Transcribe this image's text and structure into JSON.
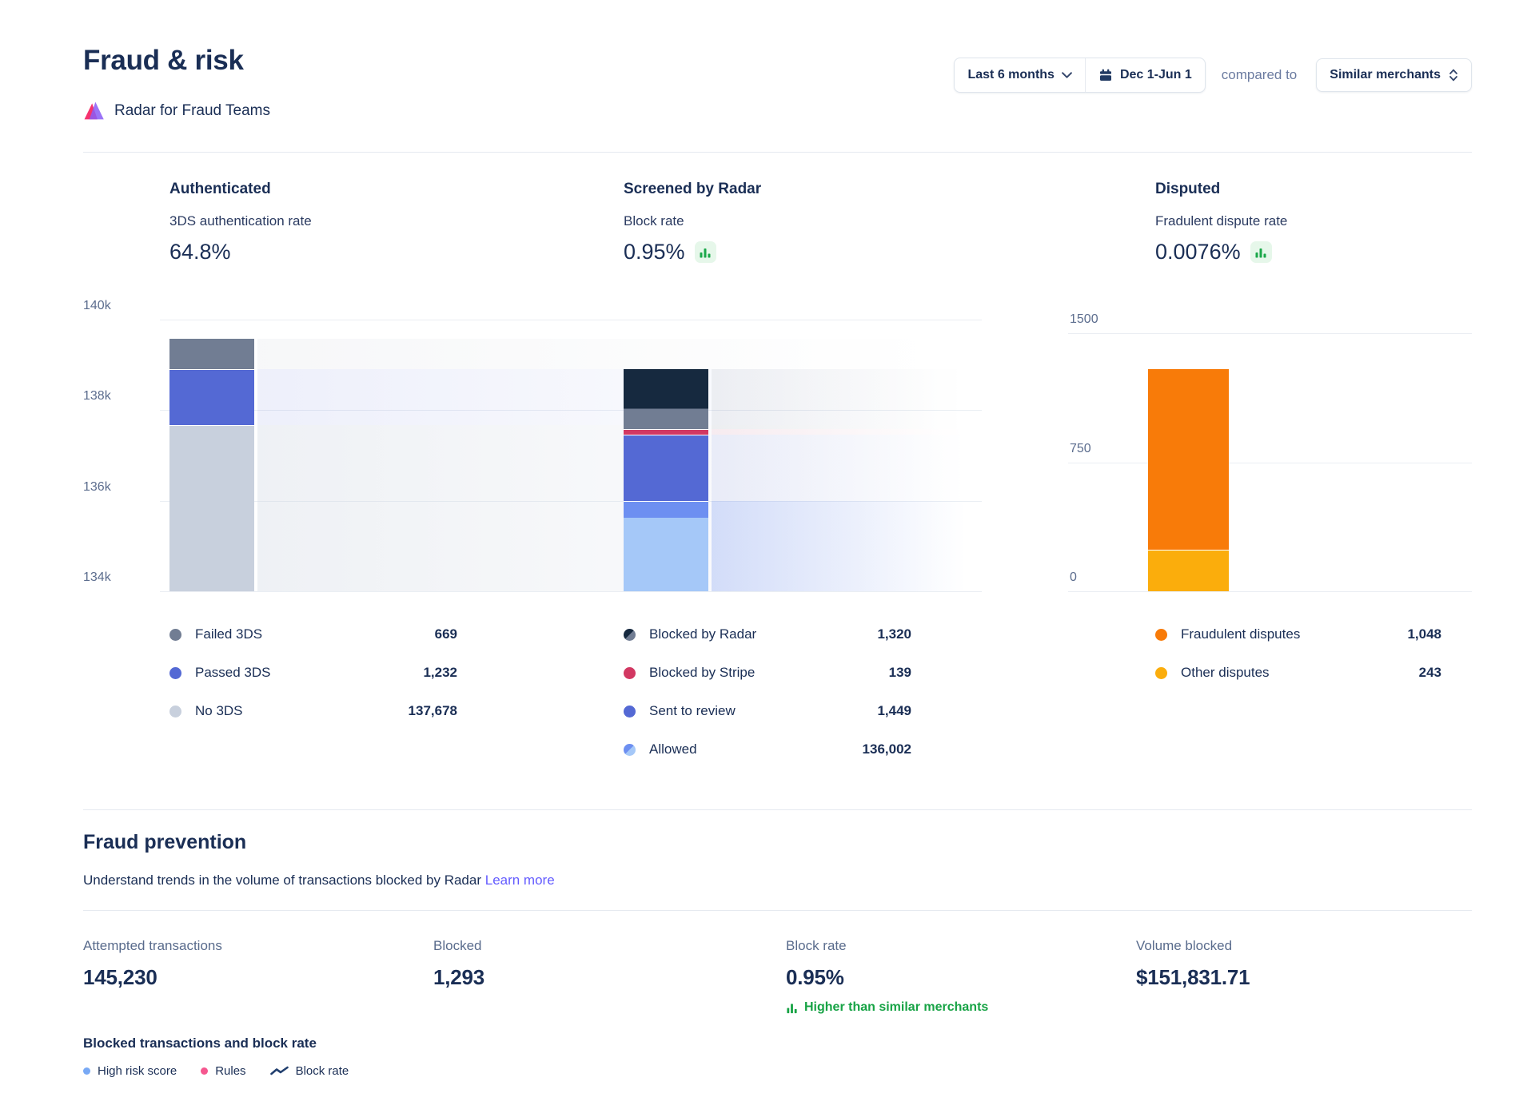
{
  "header": {
    "title": "Fraud & risk",
    "product": "Radar for Fraud Teams",
    "range_button": "Last 6 months",
    "date_button": "Dec 1-Jun 1",
    "compared_to": "compared to",
    "comparison": "Similar merchants"
  },
  "metrics": [
    {
      "title": "Authenticated",
      "subtitle": "3DS authentication rate",
      "value": "64.8%"
    },
    {
      "title": "Screened by Radar",
      "subtitle": "Block rate",
      "value": "0.95%"
    },
    {
      "title": "Disputed",
      "subtitle": "Fradulent dispute rate",
      "value": "0.0076%"
    }
  ],
  "chart_data": [
    {
      "type": "bar",
      "title": "Authenticated",
      "y_ticks": [
        "140k",
        "138k",
        "136k",
        "134k"
      ],
      "y_range": [
        134000,
        140000
      ],
      "segments": [
        {
          "name": "Failed 3DS",
          "value": 669,
          "display": "669",
          "color": "#717D93"
        },
        {
          "name": "Passed 3DS",
          "value": 1232,
          "display": "1,232",
          "color": "#5469D4"
        },
        {
          "name": "No 3DS",
          "value": 137678,
          "display": "137,678",
          "color": "#C8D0DD"
        }
      ]
    },
    {
      "type": "bar",
      "title": "Screened by Radar",
      "y_ticks": [],
      "y_range": [
        134000,
        140000
      ],
      "segments": [
        {
          "name": "Blocked by Radar",
          "value": 1320,
          "display": "1,320",
          "color": "#16293F",
          "color2": "#717D93"
        },
        {
          "name": "Blocked by Stripe",
          "value": 139,
          "display": "139",
          "color": "#D23862"
        },
        {
          "name": "Sent to review",
          "value": 1449,
          "display": "1,449",
          "color": "#5469D4"
        },
        {
          "name": "Allowed",
          "value": 136002,
          "display": "136,002",
          "color": "#6D8FF1",
          "color2": "#A5C8F8"
        }
      ]
    },
    {
      "type": "bar",
      "title": "Disputed",
      "y_ticks": [
        "1500",
        "750",
        "0"
      ],
      "y_range": [
        0,
        1500
      ],
      "segments": [
        {
          "name": "Fraudulent disputes",
          "value": 1048,
          "display": "1,048",
          "color": "#F87B09"
        },
        {
          "name": "Other disputes",
          "value": 243,
          "display": "243",
          "color": "#FBAD0C"
        }
      ]
    }
  ],
  "fraud_prevention": {
    "title": "Fraud prevention",
    "subtitle": "Understand trends in the volume of transactions blocked by Radar",
    "link": "Learn more",
    "stats": [
      {
        "label": "Attempted transactions",
        "value": "145,230"
      },
      {
        "label": "Blocked",
        "value": "1,293"
      },
      {
        "label": "Block rate",
        "value": "0.95%",
        "note": "Higher than similar merchants"
      },
      {
        "label": "Volume blocked",
        "value": "$151,831.71"
      }
    ],
    "chart_title": "Blocked transactions and block rate",
    "legend": [
      {
        "label": "High risk score",
        "color": "#78A9F5"
      },
      {
        "label": "Rules",
        "color": "#F5578F"
      },
      {
        "label": "Block rate",
        "color": "#22406F",
        "line": true
      }
    ]
  },
  "colors": {
    "accent": "#635BFF",
    "positive": "#1BA84A",
    "positive_bg": "#E6F7EA",
    "text": "#1A2E55",
    "muted": "#596B8C"
  }
}
